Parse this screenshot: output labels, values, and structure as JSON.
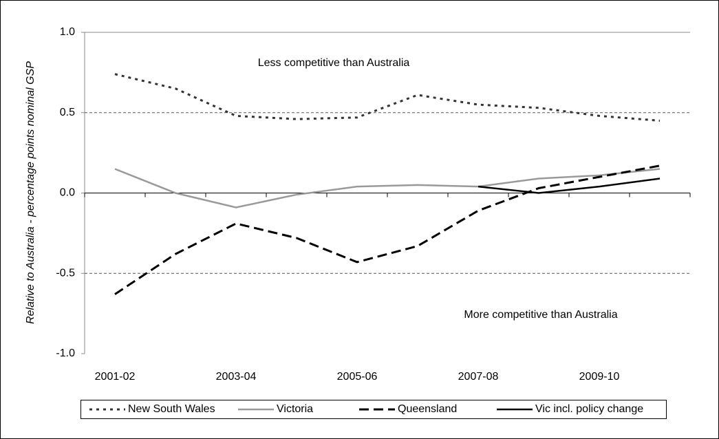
{
  "chart_data": {
    "type": "line",
    "y_label": "Relative to Australia - percentage points nominal GSP",
    "annotations": [
      "Less competitive than Australia",
      "More competitive than Australia"
    ],
    "categories": [
      "2001-02",
      null,
      "2003-04",
      null,
      "2005-06",
      null,
      "2007-08",
      null,
      "2009-10",
      null
    ],
    "series": [
      {
        "name": "New South Wales",
        "color": "#333333",
        "dash": "dotted",
        "values": [
          0.74,
          0.65,
          0.48,
          0.46,
          0.47,
          0.61,
          0.55,
          0.53,
          0.48,
          0.45
        ]
      },
      {
        "name": "Victoria",
        "color": "#999999",
        "dash": "solid",
        "values": [
          0.15,
          0.0,
          -0.09,
          -0.01,
          0.04,
          0.05,
          0.04,
          0.09,
          0.11,
          0.15
        ]
      },
      {
        "name": "Queensland",
        "color": "#000000",
        "dash": "dashed",
        "values": [
          -0.63,
          -0.38,
          -0.19,
          -0.28,
          -0.43,
          -0.33,
          -0.11,
          0.03,
          0.1,
          0.17
        ]
      },
      {
        "name": "Vic incl. policy change",
        "color": "#000000",
        "dash": "solid",
        "values": [
          null,
          null,
          null,
          null,
          null,
          null,
          0.04,
          0.0,
          0.04,
          0.09
        ]
      }
    ],
    "ylim": [
      -1,
      1
    ],
    "yticks": [
      {
        "value": -1,
        "label": "-1.0"
      },
      -0.5,
      {
        "value": 0,
        "label": "0.0"
      },
      0.5,
      {
        "value": 1,
        "label": "1.0"
      }
    ],
    "grid": true,
    "legend": "bottom"
  }
}
